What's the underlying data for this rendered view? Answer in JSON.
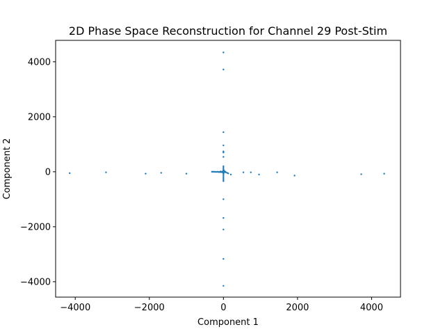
{
  "chart_data": {
    "type": "scatter",
    "title": "2D Phase Space Reconstruction for Channel 29 Post-Stim",
    "xlabel": "Component 1",
    "ylabel": "Component 2",
    "xlim": [
      -4530,
      4780
    ],
    "ylim": [
      -4560,
      4780
    ],
    "x_ticks": [
      -4000,
      -2000,
      0,
      2000,
      4000
    ],
    "y_ticks": [
      -4000,
      -2000,
      0,
      2000,
      4000
    ],
    "x_tick_labels": [
      "−4000",
      "−2000",
      "0",
      "2000",
      "4000"
    ],
    "y_tick_labels": [
      "−4000",
      "−2000",
      "0",
      "2000",
      "4000"
    ],
    "grid": false,
    "marker_color": "#1f77b4",
    "series": [
      {
        "points": [
          [
            -4150,
            -50
          ],
          [
            -3170,
            -20
          ],
          [
            -2100,
            -70
          ],
          [
            -1680,
            -40
          ],
          [
            -1000,
            -70
          ],
          [
            -310,
            0
          ],
          [
            -280,
            0
          ],
          [
            -250,
            0
          ],
          [
            -220,
            -5
          ],
          [
            -190,
            -5
          ],
          [
            -160,
            0
          ],
          [
            -130,
            -10
          ],
          [
            -100,
            -10
          ],
          [
            -80,
            10
          ],
          [
            -60,
            -15
          ],
          [
            -40,
            5
          ],
          [
            -20,
            -20
          ],
          [
            -10,
            15
          ],
          [
            10,
            -30
          ],
          [
            20,
            40
          ],
          [
            30,
            -10
          ],
          [
            50,
            0
          ],
          [
            70,
            -20
          ],
          [
            100,
            -40
          ],
          [
            130,
            -60
          ],
          [
            200,
            -100
          ],
          [
            540,
            -20
          ],
          [
            740,
            -20
          ],
          [
            960,
            -100
          ],
          [
            1450,
            -20
          ],
          [
            1920,
            -140
          ],
          [
            3720,
            -90
          ],
          [
            4340,
            -70
          ],
          [
            0,
            4340
          ],
          [
            0,
            3720
          ],
          [
            0,
            1440
          ],
          [
            0,
            960
          ],
          [
            0,
            740
          ],
          [
            0,
            700
          ],
          [
            0,
            540
          ],
          [
            0,
            200
          ],
          [
            0,
            150
          ],
          [
            0,
            100
          ],
          [
            0,
            60
          ],
          [
            0,
            -60
          ],
          [
            0,
            -100
          ],
          [
            0,
            -150
          ],
          [
            0,
            -200
          ],
          [
            0,
            -250
          ],
          [
            0,
            -300
          ],
          [
            0,
            -340
          ],
          [
            0,
            -1000
          ],
          [
            0,
            -1680
          ],
          [
            0,
            -2100
          ],
          [
            0,
            -3170
          ],
          [
            0,
            -4150
          ]
        ]
      }
    ]
  }
}
